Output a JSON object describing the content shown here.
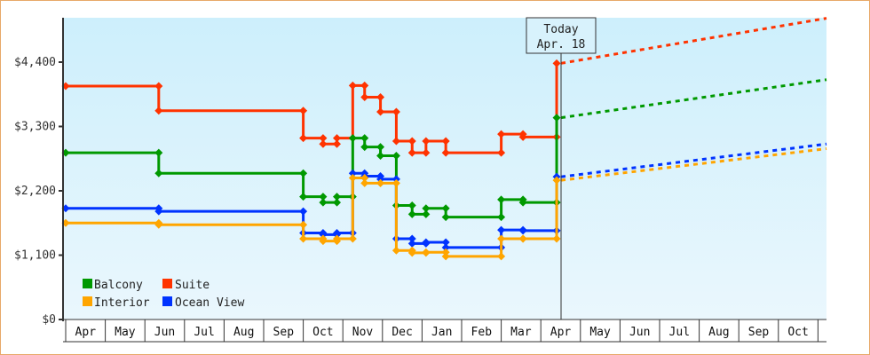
{
  "chart_data": {
    "type": "line",
    "title": "",
    "xlabel": "",
    "ylabel": "",
    "ylim": [
      0,
      4800
    ],
    "yticks": [
      "$0",
      "$1,100",
      "$2,200",
      "$3,300",
      "$4,400"
    ],
    "ytick_values": [
      0,
      1100,
      2200,
      3300,
      4400
    ],
    "months": [
      "Apr",
      "May",
      "Jun",
      "Jul",
      "Aug",
      "Sep",
      "Oct",
      "Nov",
      "Dec",
      "Jan",
      "Feb",
      "Mar",
      "Apr",
      "May",
      "Jun",
      "Jul",
      "Aug",
      "Sep",
      "Oct"
    ],
    "today_marker": {
      "line1": "Today",
      "line2": "Apr. 18"
    },
    "legend": [
      {
        "name": "Balcony",
        "color": "#009900"
      },
      {
        "name": "Suite",
        "color": "#ff3300"
      },
      {
        "name": "Interior",
        "color": "#ffa500"
      },
      {
        "name": "Ocean View",
        "color": "#0033ff"
      }
    ],
    "series": [
      {
        "name": "Suite",
        "color": "#ff3300",
        "historical": [
          [
            0,
            3990
          ],
          [
            2.35,
            3990
          ],
          [
            2.35,
            3570
          ],
          [
            6.0,
            3570
          ],
          [
            6.0,
            3100
          ],
          [
            6.5,
            3100
          ],
          [
            6.5,
            3000
          ],
          [
            6.85,
            3000
          ],
          [
            6.85,
            3100
          ],
          [
            7.25,
            3100
          ],
          [
            7.25,
            4000
          ],
          [
            7.55,
            4000
          ],
          [
            7.55,
            3800
          ],
          [
            7.95,
            3800
          ],
          [
            7.95,
            3550
          ],
          [
            8.35,
            3550
          ],
          [
            8.35,
            3050
          ],
          [
            8.75,
            3050
          ],
          [
            8.75,
            2850
          ],
          [
            9.1,
            2850
          ],
          [
            9.1,
            3050
          ],
          [
            9.6,
            3050
          ],
          [
            9.6,
            2850
          ],
          [
            11.0,
            2850
          ],
          [
            11.0,
            3170
          ],
          [
            11.55,
            3170
          ],
          [
            11.55,
            3120
          ],
          [
            12.4,
            3120
          ],
          [
            12.4,
            4380
          ]
        ],
        "forecast": [
          [
            12.4,
            4380
          ],
          [
            19.5,
            5150
          ]
        ]
      },
      {
        "name": "Balcony",
        "color": "#009900",
        "historical": [
          [
            0,
            2850
          ],
          [
            2.35,
            2850
          ],
          [
            2.35,
            2500
          ],
          [
            6.0,
            2500
          ],
          [
            6.0,
            2100
          ],
          [
            6.5,
            2100
          ],
          [
            6.5,
            2000
          ],
          [
            6.85,
            2000
          ],
          [
            6.85,
            2100
          ],
          [
            7.25,
            2100
          ],
          [
            7.25,
            3100
          ],
          [
            7.55,
            3100
          ],
          [
            7.55,
            2950
          ],
          [
            7.95,
            2950
          ],
          [
            7.95,
            2800
          ],
          [
            8.35,
            2800
          ],
          [
            8.35,
            1950
          ],
          [
            8.75,
            1950
          ],
          [
            8.75,
            1800
          ],
          [
            9.1,
            1800
          ],
          [
            9.1,
            1900
          ],
          [
            9.6,
            1900
          ],
          [
            9.6,
            1750
          ],
          [
            11.0,
            1750
          ],
          [
            11.0,
            2050
          ],
          [
            11.55,
            2050
          ],
          [
            11.55,
            2000
          ],
          [
            12.4,
            2000
          ],
          [
            12.4,
            3450
          ]
        ],
        "forecast": [
          [
            12.4,
            3450
          ],
          [
            19.5,
            4100
          ]
        ]
      },
      {
        "name": "Ocean View",
        "color": "#0033ff",
        "historical": [
          [
            0,
            1900
          ],
          [
            2.35,
            1900
          ],
          [
            2.35,
            1850
          ],
          [
            6.0,
            1850
          ],
          [
            6.0,
            1480
          ],
          [
            6.5,
            1480
          ],
          [
            6.5,
            1450
          ],
          [
            6.85,
            1450
          ],
          [
            6.85,
            1480
          ],
          [
            7.25,
            1480
          ],
          [
            7.25,
            2500
          ],
          [
            7.55,
            2500
          ],
          [
            7.55,
            2450
          ],
          [
            7.95,
            2450
          ],
          [
            7.95,
            2400
          ],
          [
            8.35,
            2400
          ],
          [
            8.35,
            1380
          ],
          [
            8.75,
            1380
          ],
          [
            8.75,
            1300
          ],
          [
            9.1,
            1300
          ],
          [
            9.1,
            1320
          ],
          [
            9.6,
            1320
          ],
          [
            9.6,
            1230
          ],
          [
            11.0,
            1230
          ],
          [
            11.0,
            1530
          ],
          [
            11.55,
            1530
          ],
          [
            11.55,
            1520
          ],
          [
            12.4,
            1520
          ],
          [
            12.4,
            2440
          ]
        ],
        "forecast": [
          [
            12.4,
            2440
          ],
          [
            19.5,
            3000
          ]
        ]
      },
      {
        "name": "Interior",
        "color": "#ffa500",
        "historical": [
          [
            0,
            1650
          ],
          [
            2.35,
            1650
          ],
          [
            2.35,
            1620
          ],
          [
            6.0,
            1620
          ],
          [
            6.0,
            1380
          ],
          [
            6.5,
            1380
          ],
          [
            6.5,
            1340
          ],
          [
            6.85,
            1340
          ],
          [
            6.85,
            1380
          ],
          [
            7.25,
            1380
          ],
          [
            7.25,
            2420
          ],
          [
            7.55,
            2420
          ],
          [
            7.55,
            2330
          ],
          [
            7.95,
            2330
          ],
          [
            7.95,
            2330
          ],
          [
            8.35,
            2330
          ],
          [
            8.35,
            1180
          ],
          [
            8.75,
            1180
          ],
          [
            8.75,
            1140
          ],
          [
            9.1,
            1140
          ],
          [
            9.1,
            1150
          ],
          [
            9.6,
            1150
          ],
          [
            9.6,
            1080
          ],
          [
            11.0,
            1080
          ],
          [
            11.0,
            1380
          ],
          [
            11.55,
            1380
          ],
          [
            11.55,
            1380
          ],
          [
            12.4,
            1380
          ],
          [
            12.4,
            2380
          ]
        ],
        "forecast": [
          [
            12.4,
            2380
          ],
          [
            19.5,
            2920
          ]
        ]
      }
    ]
  }
}
